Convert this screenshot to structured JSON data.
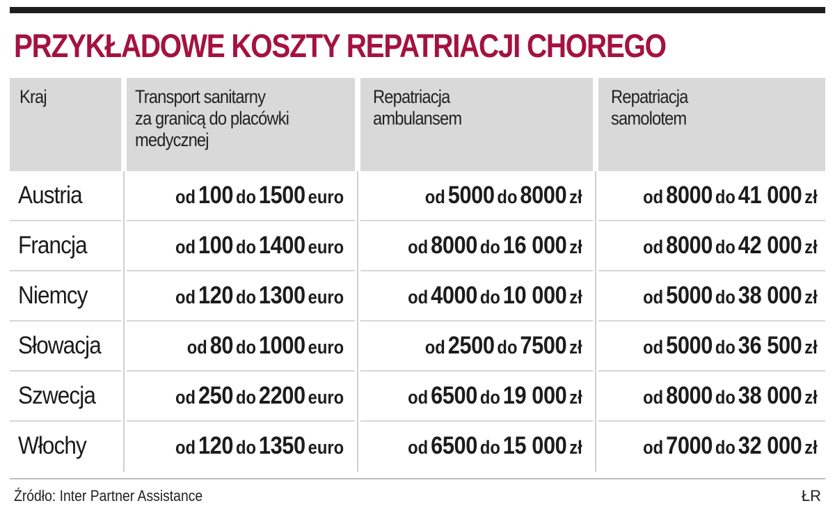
{
  "title": "PRZYKŁADOWE KOSZTY REPATRIACJI CHOREGO",
  "headers": [
    "Kraj",
    "Transport sanitarny\nza granicą do placówki\nmedycznej",
    "Repatriacja\nambulansem",
    "Repatriacja\nsamolotem"
  ],
  "words": {
    "from": "od",
    "to": "do"
  },
  "rows": [
    {
      "country": "Austria",
      "c1": {
        "a": "100",
        "b": "1500",
        "unit": "euro"
      },
      "c2": {
        "a": "5000",
        "b": "8000",
        "unit": "zł"
      },
      "c3": {
        "a": "8000",
        "b": "41 000",
        "unit": "zł"
      }
    },
    {
      "country": "Francja",
      "c1": {
        "a": "100",
        "b": "1400",
        "unit": "euro"
      },
      "c2": {
        "a": "8000",
        "b": "16 000",
        "unit": "zł"
      },
      "c3": {
        "a": "8000",
        "b": "42 000",
        "unit": "zł"
      }
    },
    {
      "country": "Niemcy",
      "c1": {
        "a": "120",
        "b": "1300",
        "unit": "euro"
      },
      "c2": {
        "a": "4000",
        "b": "10 000",
        "unit": "zł"
      },
      "c3": {
        "a": "5000",
        "b": "38 000",
        "unit": "zł"
      }
    },
    {
      "country": "Słowacja",
      "c1": {
        "a": "80",
        "b": "1000",
        "unit": "euro"
      },
      "c2": {
        "a": "2500",
        "b": "7500",
        "unit": "zł"
      },
      "c3": {
        "a": "5000",
        "b": "36 500",
        "unit": "zł"
      }
    },
    {
      "country": "Szwecja",
      "c1": {
        "a": "250",
        "b": "2200",
        "unit": "euro"
      },
      "c2": {
        "a": "6500",
        "b": "19 000",
        "unit": "zł"
      },
      "c3": {
        "a": "8000",
        "b": "38 000",
        "unit": "zł"
      }
    },
    {
      "country": "Włochy",
      "c1": {
        "a": "120",
        "b": "1350",
        "unit": "euro"
      },
      "c2": {
        "a": "6500",
        "b": "15 000",
        "unit": "zł"
      },
      "c3": {
        "a": "7000",
        "b": "32 000",
        "unit": "zł"
      }
    }
  ],
  "source": "Źródło: Inter Partner Assistance",
  "credit": "ŁR"
}
